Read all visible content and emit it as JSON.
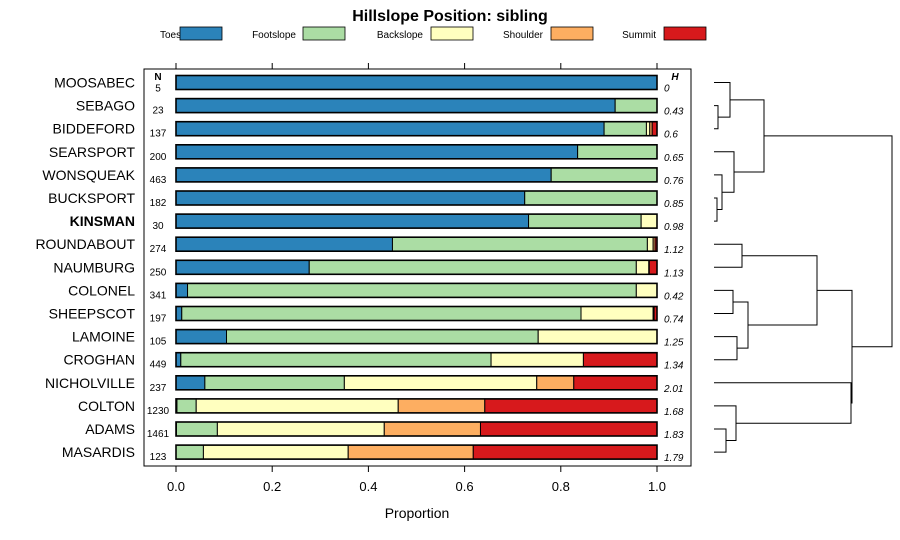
{
  "chart_data": {
    "type": "bar",
    "stacked": true,
    "title": "Hillslope Position: sibling",
    "xlabel": "Proportion",
    "xlim": [
      0,
      1
    ],
    "xticks": [
      "0.0",
      "0.2",
      "0.4",
      "0.6",
      "0.8",
      "1.0"
    ],
    "n_header": "N",
    "h_header": "H",
    "legend": [
      {
        "label": "Toeslope",
        "color": "#2b83ba"
      },
      {
        "label": "Footslope",
        "color": "#abdda4"
      },
      {
        "label": "Backslope",
        "color": "#ffffbf"
      },
      {
        "label": "Shoulder",
        "color": "#fdae61"
      },
      {
        "label": "Summit",
        "color": "#d7191c"
      }
    ],
    "series": [
      {
        "name": "MOOSABEC",
        "n": "5",
        "h": "0",
        "values": [
          1.0,
          0,
          0,
          0,
          0
        ]
      },
      {
        "name": "SEBAGO",
        "n": "23",
        "h": "0.43",
        "values": [
          0.913,
          0.087,
          0,
          0,
          0
        ]
      },
      {
        "name": "BIDDEFORD",
        "n": "137",
        "h": "0.6",
        "values": [
          0.89,
          0.088,
          0.007,
          0.005,
          0.01
        ]
      },
      {
        "name": "SEARSPORT",
        "n": "200",
        "h": "0.65",
        "values": [
          0.835,
          0.165,
          0,
          0,
          0
        ]
      },
      {
        "name": "WONSQUEAK",
        "n": "463",
        "h": "0.76",
        "values": [
          0.78,
          0.22,
          0,
          0,
          0
        ]
      },
      {
        "name": "BUCKSPORT",
        "n": "182",
        "h": "0.85",
        "values": [
          0.725,
          0.275,
          0,
          0,
          0
        ]
      },
      {
        "name": "KINSMAN",
        "n": "30",
        "h": "0.98",
        "values": [
          0.733,
          0.234,
          0.033,
          0,
          0
        ],
        "bold": true
      },
      {
        "name": "ROUNDABOUT",
        "n": "274",
        "h": "1.12",
        "values": [
          0.45,
          0.53,
          0.012,
          0.004,
          0.004
        ]
      },
      {
        "name": "NAUMBURG",
        "n": "250",
        "h": "1.13",
        "values": [
          0.277,
          0.68,
          0.026,
          0.001,
          0.016
        ]
      },
      {
        "name": "COLONEL",
        "n": "341",
        "h": "0.42",
        "values": [
          0.024,
          0.933,
          0.043,
          0,
          0
        ]
      },
      {
        "name": "SHEEPSCOT",
        "n": "197",
        "h": "0.74",
        "values": [
          0.012,
          0.83,
          0.15,
          0.002,
          0.006
        ]
      },
      {
        "name": "LAMOINE",
        "n": "105",
        "h": "1.25",
        "values": [
          0.105,
          0.648,
          0.247,
          0,
          0
        ]
      },
      {
        "name": "CROGHAN",
        "n": "449",
        "h": "1.34",
        "values": [
          0.01,
          0.645,
          0.192,
          0,
          0.153
        ]
      },
      {
        "name": "NICHOLVILLE",
        "n": "237",
        "h": "2.01",
        "values": [
          0.06,
          0.29,
          0.4,
          0.077,
          0.173
        ]
      },
      {
        "name": "COLTON",
        "n": "1230",
        "h": "1.68",
        "values": [
          0.002,
          0.04,
          0.42,
          0.18,
          0.358
        ]
      },
      {
        "name": "ADAMS",
        "n": "1461",
        "h": "1.83",
        "values": [
          0.001,
          0.085,
          0.347,
          0.2,
          0.367
        ]
      },
      {
        "name": "MASARDIS",
        "n": "123",
        "h": "1.79",
        "values": [
          0,
          0.057,
          0.301,
          0.26,
          0.382
        ]
      }
    ]
  }
}
